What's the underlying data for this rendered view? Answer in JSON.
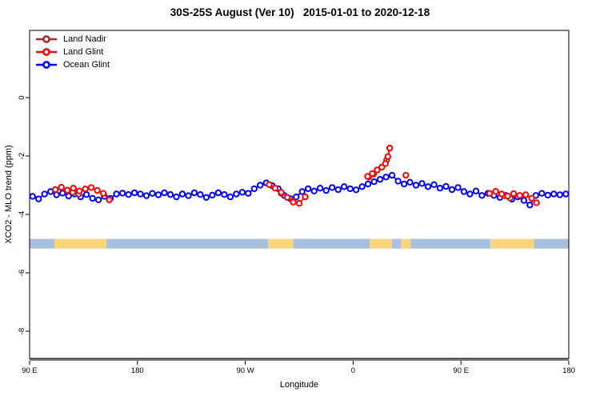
{
  "title": "30S-25S August (Ver 10)   2015-01-01 to 2020-12-18",
  "axes": {
    "x_label": "Longitude",
    "y_label": "XCO2 - MLO trend (ppm)",
    "x_ticks": [
      {
        "pos": 90,
        "label": "90 E"
      },
      {
        "pos": 180,
        "label": "180"
      },
      {
        "pos": 270,
        "label": "90 W"
      },
      {
        "pos": 360,
        "label": "0"
      },
      {
        "pos": 450,
        "label": "90 E"
      },
      {
        "pos": 540,
        "label": "180"
      }
    ],
    "y_ticks": [
      {
        "pos": 0,
        "label": "0"
      },
      {
        "pos": -2,
        "label": "-2"
      },
      {
        "pos": -4,
        "label": "-4"
      },
      {
        "pos": -6,
        "label": "-6"
      },
      {
        "pos": -8,
        "label": "-8"
      }
    ]
  },
  "legend": [
    {
      "label": "Land Nadir",
      "color": "#A52A2A"
    },
    {
      "label": "Land Glint",
      "color": "#FF0000"
    },
    {
      "label": "Ocean Glint",
      "color": "#0000FF"
    }
  ],
  "colors": {
    "frame": "#000000",
    "baseline_gray": "#7f7f7f",
    "band_ocean": "#a8c0dd",
    "band_land": "#fcd67c"
  },
  "chart_data": {
    "type": "line",
    "xlim": [
      90,
      540
    ],
    "ylim": [
      -8.93,
      2.3
    ],
    "x_axis_note": "longitude axis wraps: 90E to 180 to 90W to 0 to 90E to 180",
    "surface_band": {
      "y_top": -4.84,
      "y_bottom": -5.17,
      "segments": [
        {
          "from": 90,
          "to": 110.7,
          "type": "ocean"
        },
        {
          "from": 110.7,
          "to": 154,
          "type": "land"
        },
        {
          "from": 154,
          "to": 289,
          "type": "ocean"
        },
        {
          "from": 289,
          "to": 310,
          "type": "land"
        },
        {
          "from": 310,
          "to": 374,
          "type": "ocean"
        },
        {
          "from": 374,
          "to": 392.5,
          "type": "land"
        },
        {
          "from": 392.5,
          "to": 400,
          "type": "ocean"
        },
        {
          "from": 400,
          "to": 408,
          "type": "land"
        },
        {
          "from": 408,
          "to": 474.5,
          "type": "ocean"
        },
        {
          "from": 474.5,
          "to": 511,
          "type": "land"
        },
        {
          "from": 511,
          "to": 540,
          "type": "ocean"
        }
      ]
    },
    "series": [
      {
        "name": "Ocean Glint",
        "color": "#0000FF",
        "segments": [
          [
            [
              92.5,
              -3.38
            ],
            [
              97.5,
              -3.47
            ],
            [
              102.5,
              -3.3
            ],
            [
              107.5,
              -3.22
            ],
            [
              112.5,
              -3.33
            ],
            [
              117.5,
              -3.27
            ],
            [
              122.5,
              -3.37
            ],
            [
              127.5,
              -3.3
            ],
            [
              132.5,
              -3.4
            ],
            [
              137.5,
              -3.32
            ],
            [
              142.5,
              -3.45
            ],
            [
              147.5,
              -3.5
            ],
            [
              152.5,
              -3.38
            ],
            [
              157.5,
              -3.45
            ],
            [
              162.5,
              -3.3
            ],
            [
              167.5,
              -3.27
            ],
            [
              172.5,
              -3.32
            ],
            [
              177.5,
              -3.26
            ],
            [
              182.5,
              -3.3
            ],
            [
              187.5,
              -3.36
            ],
            [
              192.5,
              -3.28
            ],
            [
              197.5,
              -3.33
            ],
            [
              202.5,
              -3.26
            ],
            [
              207.5,
              -3.32
            ],
            [
              212.5,
              -3.4
            ],
            [
              217.5,
              -3.3
            ],
            [
              222.5,
              -3.36
            ],
            [
              227.5,
              -3.26
            ],
            [
              232.5,
              -3.32
            ],
            [
              237.5,
              -3.42
            ],
            [
              242.5,
              -3.34
            ],
            [
              247.5,
              -3.26
            ],
            [
              252.5,
              -3.32
            ],
            [
              257.5,
              -3.4
            ],
            [
              262.5,
              -3.3
            ],
            [
              267.5,
              -3.24
            ],
            [
              272.5,
              -3.28
            ],
            [
              277.5,
              -3.12
            ],
            [
              282.5,
              -3.0
            ],
            [
              287.5,
              -2.92
            ],
            [
              292.5,
              -3.02
            ],
            [
              297.5,
              -3.12
            ],
            [
              302.5,
              -3.35
            ],
            [
              307.5,
              -3.46
            ],
            [
              312.5,
              -3.4
            ],
            [
              317.5,
              -3.22
            ],
            [
              322.5,
              -3.12
            ],
            [
              327.5,
              -3.2
            ],
            [
              332.5,
              -3.1
            ],
            [
              337.5,
              -3.18
            ],
            [
              342.5,
              -3.08
            ],
            [
              347.5,
              -3.15
            ],
            [
              352.5,
              -3.05
            ],
            [
              357.5,
              -3.12
            ],
            [
              362.5,
              -3.16
            ],
            [
              367.5,
              -3.05
            ],
            [
              372.5,
              -2.96
            ],
            [
              377.5,
              -2.88
            ],
            [
              382.5,
              -2.8
            ],
            [
              387.5,
              -2.72
            ],
            [
              392.5,
              -2.66
            ],
            [
              397.5,
              -2.86
            ],
            [
              402.5,
              -2.96
            ],
            [
              407.5,
              -2.9
            ],
            [
              412.5,
              -3.0
            ],
            [
              417.5,
              -2.94
            ],
            [
              422.5,
              -3.05
            ],
            [
              427.5,
              -2.98
            ],
            [
              432.5,
              -3.1
            ],
            [
              437.5,
              -3.04
            ],
            [
              442.5,
              -3.15
            ],
            [
              447.5,
              -3.08
            ],
            [
              452.5,
              -3.22
            ],
            [
              457.5,
              -3.3
            ],
            [
              462.5,
              -3.2
            ],
            [
              467.5,
              -3.35
            ],
            [
              472.5,
              -3.28
            ],
            [
              477.5,
              -3.35
            ],
            [
              482.5,
              -3.42
            ],
            [
              487.5,
              -3.35
            ],
            [
              492.5,
              -3.48
            ],
            [
              497.5,
              -3.4
            ],
            [
              502.5,
              -3.52
            ],
            [
              507.5,
              -3.68
            ],
            [
              512.5,
              -3.35
            ],
            [
              517.5,
              -3.28
            ],
            [
              522.5,
              -3.34
            ],
            [
              527.5,
              -3.3
            ],
            [
              532.5,
              -3.33
            ],
            [
              537.5,
              -3.3
            ]
          ]
        ]
      },
      {
        "name": "Land Nadir",
        "color": "#A52A2A",
        "segments": [
          [
            [
              126,
              -3.24
            ],
            [
              131,
              -3.3
            ]
          ],
          [
            [
              300,
              -3.28
            ]
          ],
          [
            [
              310,
              -3.54
            ]
          ],
          [
            [
              373,
              -2.72
            ],
            [
              377,
              -2.62
            ]
          ],
          [
            [
              388,
              -2.14
            ]
          ],
          [
            [
              486,
              -3.36
            ],
            [
              491,
              -3.44
            ]
          ]
        ]
      },
      {
        "name": "Land Glint",
        "color": "#FF0000",
        "segments": [
          [
            [
              111.5,
              -3.15
            ],
            [
              116.5,
              -3.07
            ],
            [
              121.5,
              -3.17
            ],
            [
              126.5,
              -3.1
            ],
            [
              131.5,
              -3.2
            ],
            [
              136.5,
              -3.13
            ],
            [
              141.5,
              -3.08
            ],
            [
              146.5,
              -3.18
            ],
            [
              151.5,
              -3.28
            ],
            [
              156.5,
              -3.5
            ]
          ],
          [
            [
              290,
              -2.98
            ],
            [
              295,
              -3.1
            ],
            [
              300,
              -3.24
            ],
            [
              305,
              -3.42
            ],
            [
              310,
              -3.58
            ],
            [
              315,
              -3.62
            ],
            [
              320,
              -3.4
            ]
          ],
          [
            [
              372,
              -2.7
            ],
            [
              376,
              -2.6
            ],
            [
              380,
              -2.48
            ],
            [
              384,
              -2.38
            ],
            [
              387,
              -2.26
            ],
            [
              389,
              -2.02
            ],
            [
              390.5,
              -1.73
            ]
          ],
          [
            [
              404,
              -2.66
            ]
          ],
          [
            [
              474,
              -3.28
            ],
            [
              479,
              -3.21
            ],
            [
              484,
              -3.3
            ],
            [
              489,
              -3.37
            ],
            [
              494,
              -3.29
            ],
            [
              499,
              -3.35
            ],
            [
              504,
              -3.33
            ],
            [
              509,
              -3.45
            ],
            [
              513,
              -3.6
            ]
          ]
        ]
      }
    ]
  }
}
